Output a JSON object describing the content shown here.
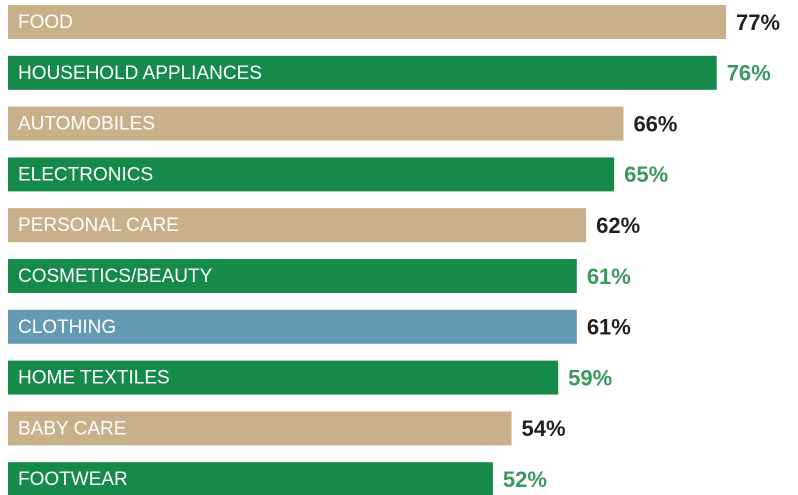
{
  "chart_data": {
    "type": "bar",
    "orientation": "horizontal",
    "categories": [
      "FOOD",
      "HOUSEHOLD APPLIANCES",
      "AUTOMOBILES",
      "ELECTRONICS",
      "PERSONAL CARE",
      "COSMETICS/BEAUTY",
      "CLOTHING",
      "HOME TEXTILES",
      "BABY CARE",
      "FOOTWEAR"
    ],
    "values": [
      77,
      76,
      66,
      65,
      62,
      61,
      61,
      59,
      54,
      52
    ],
    "value_labels": [
      "77%",
      "76%",
      "66%",
      "65%",
      "62%",
      "61%",
      "61%",
      "59%",
      "54%",
      "52%"
    ],
    "colors": [
      "#c8b08b",
      "#168a4a",
      "#c8b08b",
      "#168a4a",
      "#c8b08b",
      "#168a4a",
      "#6699b3",
      "#168a4a",
      "#c8b08b",
      "#168a4a"
    ],
    "label_colors": [
      "#231f20",
      "#3a9a5c",
      "#231f20",
      "#3a9a5c",
      "#231f20",
      "#3a9a5c",
      "#231f20",
      "#3a9a5c",
      "#231f20",
      "#3a9a5c"
    ]
  }
}
